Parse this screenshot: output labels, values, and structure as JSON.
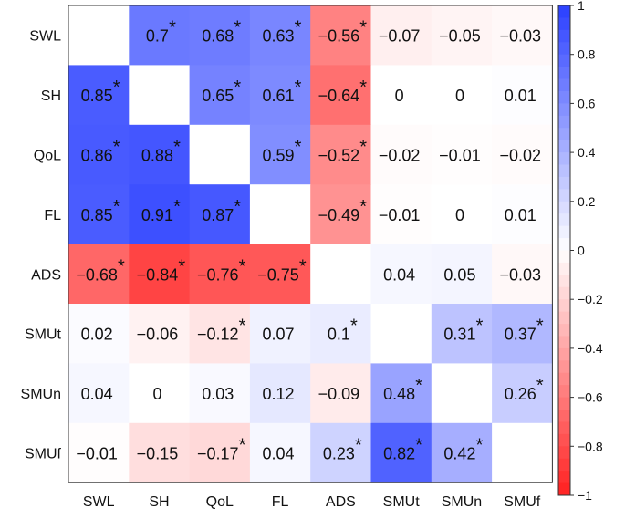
{
  "chart_data": {
    "type": "heatmap",
    "title": "",
    "xlabel": "",
    "ylabel": "",
    "variables": [
      "SWL",
      "SH",
      "QoL",
      "FL",
      "ADS",
      "SMUt",
      "SMUn",
      "SMUf"
    ],
    "cells": [
      [
        null,
        "0.7",
        "0.68",
        "0.63",
        "−0.56",
        "−0.07",
        "−0.05",
        "−0.03"
      ],
      [
        "0.85",
        null,
        "0.65",
        "0.61",
        "−0.64",
        "0",
        "0",
        "0.01"
      ],
      [
        "0.86",
        "0.88",
        null,
        "0.59",
        "−0.52",
        "−0.02",
        "−0.01",
        "−0.02"
      ],
      [
        "0.85",
        "0.91",
        "0.87",
        null,
        "−0.49",
        "−0.01",
        "0",
        "0.01"
      ],
      [
        "−0.68",
        "−0.84",
        "−0.76",
        "−0.75",
        null,
        "0.04",
        "0.05",
        "−0.03"
      ],
      [
        "0.02",
        "−0.06",
        "−0.12",
        "0.07",
        "0.1",
        null,
        "0.31",
        "0.37"
      ],
      [
        "0.04",
        "0",
        "0.03",
        "0.12",
        "−0.09",
        "0.48",
        null,
        "0.26"
      ],
      [
        "−0.01",
        "−0.15",
        "−0.17",
        "0.04",
        "0.23",
        "0.82",
        "0.42",
        null
      ]
    ],
    "values": [
      [
        null,
        0.7,
        0.68,
        0.63,
        -0.56,
        -0.07,
        -0.05,
        -0.03
      ],
      [
        0.85,
        null,
        0.65,
        0.61,
        -0.64,
        0,
        0,
        0.01
      ],
      [
        0.86,
        0.88,
        null,
        0.59,
        -0.52,
        -0.02,
        -0.01,
        -0.02
      ],
      [
        0.85,
        0.91,
        0.87,
        null,
        -0.49,
        -0.01,
        0,
        0.01
      ],
      [
        -0.68,
        -0.84,
        -0.76,
        -0.75,
        null,
        0.04,
        0.05,
        -0.03
      ],
      [
        0.02,
        -0.06,
        -0.12,
        0.07,
        0.1,
        null,
        0.31,
        0.37
      ],
      [
        0.04,
        0,
        0.03,
        0.12,
        -0.09,
        0.48,
        null,
        0.26
      ],
      [
        -0.01,
        -0.15,
        -0.17,
        0.04,
        0.23,
        0.82,
        0.42,
        null
      ]
    ],
    "significant": [
      [
        false,
        true,
        true,
        true,
        true,
        false,
        false,
        false
      ],
      [
        true,
        false,
        true,
        true,
        true,
        false,
        false,
        false
      ],
      [
        true,
        true,
        false,
        true,
        true,
        false,
        false,
        false
      ],
      [
        true,
        true,
        true,
        false,
        true,
        false,
        false,
        false
      ],
      [
        true,
        true,
        true,
        true,
        false,
        false,
        false,
        false
      ],
      [
        false,
        false,
        true,
        false,
        true,
        false,
        true,
        true
      ],
      [
        false,
        false,
        false,
        false,
        false,
        true,
        false,
        true
      ],
      [
        false,
        false,
        true,
        false,
        true,
        true,
        true,
        false
      ]
    ],
    "significance_marker": "*",
    "color_scale": {
      "min": -1,
      "max": 1,
      "negative": "#ff2020",
      "zero": "#ffffff",
      "positive": "#2a3fff"
    },
    "colorbar_ticks": [
      "1",
      "0.8",
      "0.6",
      "0.4",
      "0.2",
      "0",
      "−0.2",
      "−0.4",
      "−0.6",
      "−0.8",
      "−1"
    ],
    "colorbar_tick_values": [
      1,
      0.8,
      0.6,
      0.4,
      0.2,
      0,
      -0.2,
      -0.4,
      -0.6,
      -0.8,
      -1
    ],
    "legend_placement": "right",
    "grid": false
  }
}
